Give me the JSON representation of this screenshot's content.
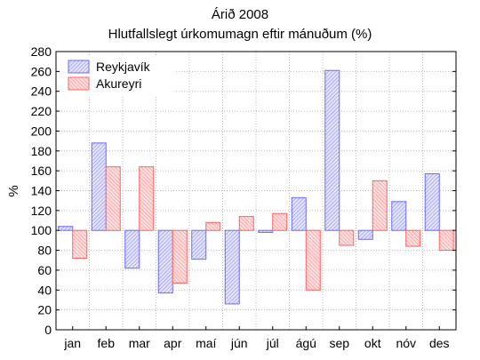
{
  "chart_data": {
    "type": "bar",
    "title": "Árið 2008",
    "subtitle": "Hlutfallslegt úrkomumagn eftir mánuðum (%)",
    "ylabel": "%",
    "xlabel": "",
    "baseline": 100,
    "ylim": [
      0,
      280
    ],
    "yticks": [
      0,
      20,
      40,
      60,
      80,
      100,
      120,
      140,
      160,
      180,
      200,
      220,
      240,
      260,
      280
    ],
    "grid": true,
    "legend_position": "top-left",
    "categories": [
      "jan",
      "feb",
      "mar",
      "apr",
      "maí",
      "jún",
      "júl",
      "ágú",
      "sep",
      "okt",
      "nóv",
      "des"
    ],
    "series": [
      {
        "name": "Reykjavík",
        "color": "#8080ff",
        "fill": "#d6d6ff",
        "values": [
          104,
          188,
          62,
          37,
          71,
          26,
          98,
          133,
          261,
          91,
          129,
          157
        ]
      },
      {
        "name": "Akureyri",
        "color": "#ff6060",
        "fill": "#ffd2d2",
        "values": [
          72,
          164,
          null,
          47,
          108,
          114,
          117,
          40,
          85,
          150,
          84,
          80
        ]
      }
    ],
    "notes_mar_akureyri": 164
  }
}
